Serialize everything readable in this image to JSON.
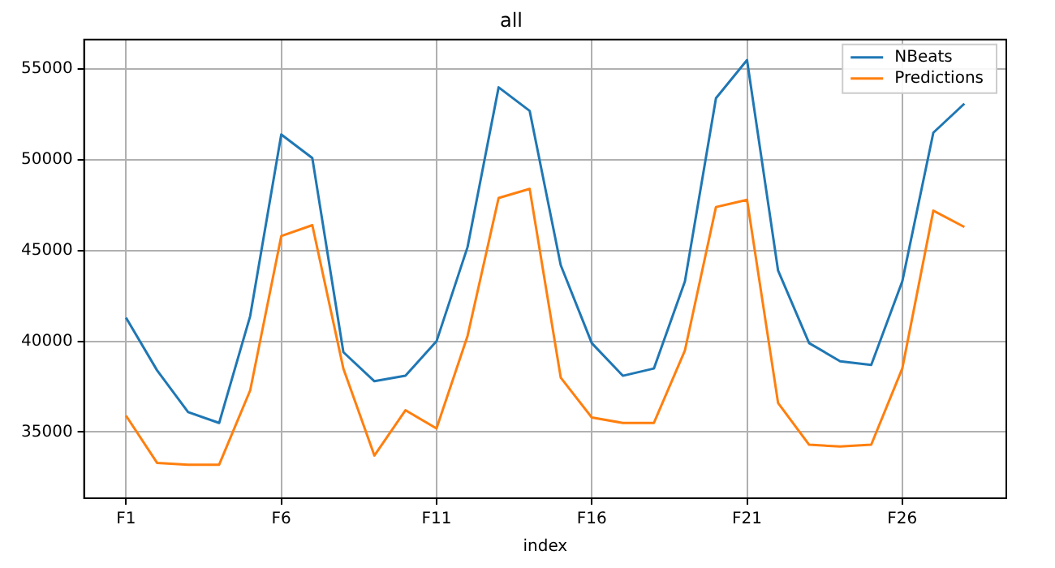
{
  "chart_data": {
    "type": "line",
    "title": "all",
    "xlabel": "index",
    "categories": [
      "F1",
      null,
      null,
      null,
      null,
      "F6",
      null,
      null,
      null,
      null,
      "F11",
      null,
      null,
      null,
      null,
      "F16",
      null,
      null,
      null,
      null,
      "F21",
      null,
      null,
      null,
      null,
      "F26",
      null,
      null
    ],
    "series": [
      {
        "name": "NBeats",
        "color": "#1f77b4",
        "values": [
          41300,
          38400,
          36100,
          35500,
          41400,
          51400,
          50100,
          39400,
          37800,
          38100,
          40000,
          45200,
          54000,
          52700,
          44200,
          39900,
          38100,
          38500,
          43300,
          53400,
          55500,
          43900,
          39900,
          38900,
          38700,
          43300,
          51500,
          53100
        ]
      },
      {
        "name": "Predictions",
        "color": "#ff7f0e",
        "values": [
          35900,
          33300,
          33200,
          33200,
          37300,
          45800,
          46400,
          38500,
          33700,
          36200,
          35200,
          40300,
          47900,
          48400,
          38000,
          35800,
          35500,
          35500,
          39500,
          47400,
          47800,
          36600,
          34300,
          34200,
          34300,
          38500,
          47200,
          46300
        ]
      }
    ],
    "ylim": [
      31350,
      56630
    ],
    "yticks": [
      35000,
      40000,
      45000,
      50000,
      55000
    ],
    "grid": true,
    "legend": "top right",
    "marker": "none",
    "line_style": "solid"
  }
}
